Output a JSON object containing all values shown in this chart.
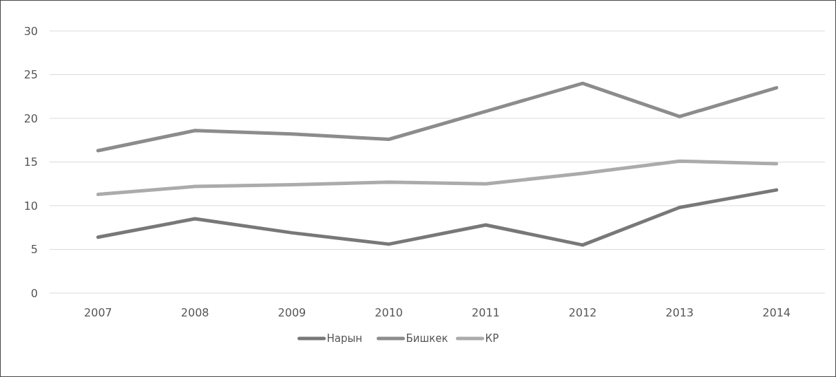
{
  "chart_data": {
    "type": "line",
    "categories": [
      "2007",
      "2008",
      "2009",
      "2010",
      "2011",
      "2012",
      "2013",
      "2014"
    ],
    "series": [
      {
        "name": "Нарын",
        "color": "#787878",
        "values": [
          6.4,
          8.5,
          6.9,
          5.6,
          7.8,
          5.5,
          9.8,
          11.8
        ]
      },
      {
        "name": "Бишкек",
        "color": "#8c8c8c",
        "values": [
          16.3,
          18.6,
          18.2,
          17.6,
          20.8,
          24.0,
          20.2,
          23.5
        ]
      },
      {
        "name": "КР",
        "color": "#ababab",
        "values": [
          11.3,
          12.2,
          12.4,
          12.7,
          12.5,
          13.7,
          15.1,
          14.8
        ]
      }
    ],
    "ylim": [
      0,
      30
    ],
    "yticks": [
      0,
      5,
      10,
      15,
      20,
      25,
      30
    ],
    "grid": "y",
    "legend": "bottom",
    "marker": "none",
    "line_style": "solid"
  }
}
